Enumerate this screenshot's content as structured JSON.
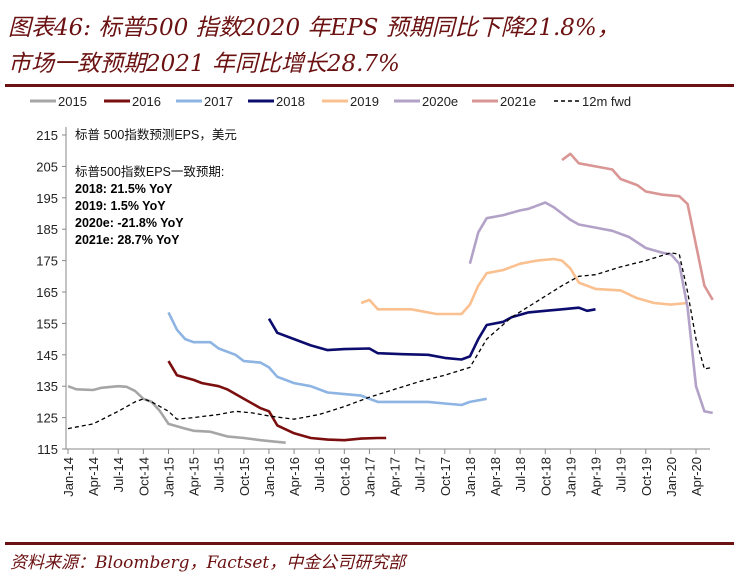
{
  "header": {
    "title_line1": "图表46: 标普500 指数2020 年EPS 预期同比下降21.8%，",
    "title_line2": "市场一致预期2021 年同比增长28.7%"
  },
  "source": "资料来源：Bloomberg，Factset，中金公司研究部",
  "colors": {
    "accent": "#6b1111"
  },
  "chart_data": {
    "type": "line",
    "title": "",
    "ylim": [
      115,
      215
    ],
    "yticks": [
      115,
      125,
      135,
      145,
      155,
      165,
      175,
      185,
      195,
      205,
      215
    ],
    "xticks": [
      "Jan-14",
      "Apr-14",
      "Jul-14",
      "Oct-14",
      "Jan-15",
      "Apr-15",
      "Jul-15",
      "Oct-15",
      "Jan-16",
      "Apr-16",
      "Jul-16",
      "Oct-16",
      "Jan-17",
      "Apr-17",
      "Jul-17",
      "Oct-17",
      "Jan-18",
      "Apr-18",
      "Jul-18",
      "Oct-18",
      "Jan-19",
      "Apr-19",
      "Jul-19",
      "Oct-19",
      "Jan-20",
      "Apr-20"
    ],
    "grid": false,
    "legend_position": "top",
    "annotations": {
      "unit_note": "标普 500指数预测EPS，美元",
      "consensus_heading": "标普500指数EPS一致预期:",
      "lines": [
        "2018: 21.5% YoY",
        "2019: 1.5% YoY",
        "2020e: -21.8% YoY",
        "2021e: 28.7% YoY"
      ]
    },
    "series": [
      {
        "name": "2015",
        "color": "#a6a6a6",
        "dashed": false,
        "points": [
          [
            "2014-01",
            135
          ],
          [
            "2014-02",
            134
          ],
          [
            "2014-04",
            133.8
          ],
          [
            "2014-05",
            134.5
          ],
          [
            "2014-07",
            135
          ],
          [
            "2014-08",
            134.8
          ],
          [
            "2014-09",
            133.5
          ],
          [
            "2014-10",
            131
          ],
          [
            "2014-11",
            130
          ],
          [
            "2014-12",
            127
          ],
          [
            "2015-01",
            123
          ],
          [
            "2015-03",
            121.5
          ],
          [
            "2015-04",
            120.8
          ],
          [
            "2015-06",
            120.5
          ],
          [
            "2015-08",
            119
          ],
          [
            "2015-10",
            118.5
          ],
          [
            "2015-12",
            117.8
          ],
          [
            "2016-01",
            117.5
          ],
          [
            "2016-03",
            117
          ]
        ]
      },
      {
        "name": "2016",
        "color": "#7b0e0e",
        "dashed": false,
        "points": [
          [
            "2015-01",
            143
          ],
          [
            "2015-02",
            138.5
          ],
          [
            "2015-04",
            137
          ],
          [
            "2015-05",
            136
          ],
          [
            "2015-07",
            135
          ],
          [
            "2015-08",
            134
          ],
          [
            "2015-10",
            131
          ],
          [
            "2015-12",
            128
          ],
          [
            "2016-01",
            127
          ],
          [
            "2016-02",
            122.5
          ],
          [
            "2016-04",
            120
          ],
          [
            "2016-06",
            118.5
          ],
          [
            "2016-08",
            118
          ],
          [
            "2016-10",
            117.8
          ],
          [
            "2016-12",
            118.3
          ],
          [
            "2017-02",
            118.5
          ],
          [
            "2017-03",
            118.5
          ]
        ]
      },
      {
        "name": "2017",
        "color": "#8db4e2",
        "dashed": false,
        "points": [
          [
            "2015-01",
            158.5
          ],
          [
            "2015-02",
            153
          ],
          [
            "2015-03",
            150
          ],
          [
            "2015-04",
            149
          ],
          [
            "2015-06",
            149
          ],
          [
            "2015-07",
            147
          ],
          [
            "2015-09",
            145
          ],
          [
            "2015-10",
            143
          ],
          [
            "2015-12",
            142.5
          ],
          [
            "2016-01",
            141
          ],
          [
            "2016-02",
            138
          ],
          [
            "2016-04",
            136
          ],
          [
            "2016-06",
            135
          ],
          [
            "2016-08",
            133
          ],
          [
            "2016-10",
            132.5
          ],
          [
            "2016-12",
            132
          ],
          [
            "2017-01",
            131
          ],
          [
            "2017-02",
            130
          ],
          [
            "2017-05",
            130
          ],
          [
            "2017-08",
            130
          ],
          [
            "2017-10",
            129.5
          ],
          [
            "2017-12",
            129
          ],
          [
            "2018-01",
            130
          ],
          [
            "2018-03",
            131
          ]
        ]
      },
      {
        "name": "2018",
        "color": "#0c0c6e",
        "dashed": false,
        "points": [
          [
            "2016-01",
            156.5
          ],
          [
            "2016-02",
            152
          ],
          [
            "2016-04",
            150
          ],
          [
            "2016-06",
            148
          ],
          [
            "2016-08",
            146.5
          ],
          [
            "2016-10",
            146.8
          ],
          [
            "2017-01",
            147
          ],
          [
            "2017-02",
            145.5
          ],
          [
            "2017-05",
            145.2
          ],
          [
            "2017-08",
            145
          ],
          [
            "2017-10",
            144
          ],
          [
            "2017-12",
            143.5
          ],
          [
            "2018-01",
            144.5
          ],
          [
            "2018-02",
            150
          ],
          [
            "2018-03",
            154.5
          ],
          [
            "2018-05",
            155.5
          ],
          [
            "2018-06",
            157
          ],
          [
            "2018-08",
            158.5
          ],
          [
            "2018-10",
            159
          ],
          [
            "2018-12",
            159.5
          ],
          [
            "2019-02",
            160
          ],
          [
            "2019-03",
            159
          ],
          [
            "2019-04",
            159.5
          ]
        ]
      },
      {
        "name": "2019",
        "color": "#fac090",
        "dashed": false,
        "points": [
          [
            "2016-12",
            161.5
          ],
          [
            "2017-01",
            162.5
          ],
          [
            "2017-02",
            159.5
          ],
          [
            "2017-06",
            159.5
          ],
          [
            "2017-09",
            158
          ],
          [
            "2017-12",
            158
          ],
          [
            "2018-01",
            161
          ],
          [
            "2018-02",
            167
          ],
          [
            "2018-03",
            171
          ],
          [
            "2018-05",
            172
          ],
          [
            "2018-07",
            174
          ],
          [
            "2018-09",
            175
          ],
          [
            "2018-11",
            175.5
          ],
          [
            "2018-12",
            175
          ],
          [
            "2019-01",
            172.5
          ],
          [
            "2019-02",
            168
          ],
          [
            "2019-04",
            166
          ],
          [
            "2019-07",
            165.5
          ],
          [
            "2019-09",
            163
          ],
          [
            "2019-11",
            161.5
          ],
          [
            "2020-01",
            161
          ],
          [
            "2020-03",
            161.5
          ]
        ]
      },
      {
        "name": "2020e",
        "color": "#b3a2c7",
        "dashed": false,
        "points": [
          [
            "2018-01",
            174
          ],
          [
            "2018-02",
            184
          ],
          [
            "2018-03",
            188.5
          ],
          [
            "2018-05",
            189.5
          ],
          [
            "2018-07",
            191
          ],
          [
            "2018-08",
            191.5
          ],
          [
            "2018-09",
            192.5
          ],
          [
            "2018-10",
            193.5
          ],
          [
            "2018-11",
            192
          ],
          [
            "2018-12",
            190
          ],
          [
            "2019-01",
            188
          ],
          [
            "2019-02",
            186.5
          ],
          [
            "2019-04",
            185.5
          ],
          [
            "2019-06",
            184.5
          ],
          [
            "2019-08",
            182.5
          ],
          [
            "2019-10",
            179
          ],
          [
            "2019-12",
            177.5
          ],
          [
            "2020-01",
            177
          ],
          [
            "2020-02",
            174
          ],
          [
            "2020-03",
            160
          ],
          [
            "2020-04",
            135
          ],
          [
            "2020-05",
            127
          ],
          [
            "2020-06",
            126.5
          ]
        ]
      },
      {
        "name": "2021e",
        "color": "#d99694",
        "dashed": false,
        "points": [
          [
            "2018-12",
            207
          ],
          [
            "2019-01",
            209
          ],
          [
            "2019-02",
            206
          ],
          [
            "2019-04",
            205
          ],
          [
            "2019-06",
            204
          ],
          [
            "2019-07",
            201
          ],
          [
            "2019-09",
            199
          ],
          [
            "2019-10",
            197
          ],
          [
            "2019-12",
            196
          ],
          [
            "2020-02",
            195.5
          ],
          [
            "2020-03",
            193
          ],
          [
            "2020-04",
            180
          ],
          [
            "2020-05",
            167
          ],
          [
            "2020-06",
            162.5
          ]
        ]
      },
      {
        "name": "12m fwd",
        "color": "#000000",
        "dashed": true,
        "points": [
          [
            "2014-01",
            121.5
          ],
          [
            "2014-04",
            123
          ],
          [
            "2014-07",
            127
          ],
          [
            "2014-09",
            130
          ],
          [
            "2014-10",
            131
          ],
          [
            "2014-11",
            130
          ],
          [
            "2015-01",
            127
          ],
          [
            "2015-02",
            124.5
          ],
          [
            "2015-04",
            125
          ],
          [
            "2015-07",
            126
          ],
          [
            "2015-09",
            127
          ],
          [
            "2015-11",
            126.5
          ],
          [
            "2016-01",
            125.5
          ],
          [
            "2016-04",
            124.5
          ],
          [
            "2016-07",
            126
          ],
          [
            "2016-10",
            128.5
          ],
          [
            "2017-01",
            131.5
          ],
          [
            "2017-04",
            134
          ],
          [
            "2017-07",
            136.5
          ],
          [
            "2017-10",
            138.5
          ],
          [
            "2018-01",
            141
          ],
          [
            "2018-03",
            150
          ],
          [
            "2018-06",
            157
          ],
          [
            "2018-09",
            162
          ],
          [
            "2018-12",
            167
          ],
          [
            "2019-02",
            170
          ],
          [
            "2019-04",
            170.5
          ],
          [
            "2019-07",
            173
          ],
          [
            "2019-10",
            175
          ],
          [
            "2020-01",
            177.5
          ],
          [
            "2020-02",
            177
          ],
          [
            "2020-03",
            165
          ],
          [
            "2020-04",
            150
          ],
          [
            "2020-05",
            140.5
          ],
          [
            "2020-06",
            141
          ]
        ]
      }
    ]
  }
}
